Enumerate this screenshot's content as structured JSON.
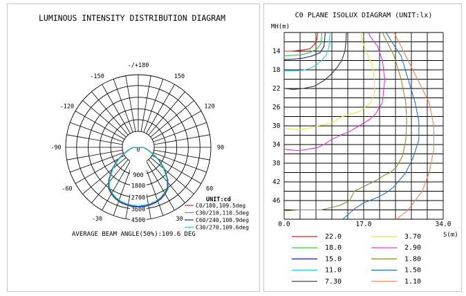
{
  "left_panel": {
    "title": "LUMINOUS INTENSITY DISTRIBUTION DIAGRAM",
    "unit_label": "UNIT:cd",
    "average_beam": "AVERAGE BEAM ANGLE(50%):109.6 DEG"
  },
  "right_panel": {
    "title": "C0 PLANE ISOLUX DIAGRAM (UNIT:lx)",
    "y_axis_label": "MH(m)",
    "x_axis_label": "S(m)"
  },
  "chart_data": [
    {
      "type": "polar",
      "title": "LUMINOUS INTENSITY DISTRIBUTION DIAGRAM",
      "unit": "UNIT:cd",
      "angle_labels": [
        {
          "angle": 180,
          "text": "-/+180"
        },
        {
          "angle": -150,
          "text": "-150"
        },
        {
          "angle": 150,
          "text": "150"
        },
        {
          "angle": -120,
          "text": "-120"
        },
        {
          "angle": 120,
          "text": "120"
        },
        {
          "angle": -90,
          "text": "-90"
        },
        {
          "angle": 90,
          "text": "90"
        },
        {
          "angle": -60,
          "text": "-60"
        },
        {
          "angle": 60,
          "text": "60"
        },
        {
          "angle": -30,
          "text": "-30"
        },
        {
          "angle": 30,
          "text": "30"
        },
        {
          "angle": 0,
          "text": "0"
        }
      ],
      "radial_ticks": [
        900,
        1800,
        2700,
        3600,
        4500
      ],
      "radial_tick_labels": [
        "900",
        "1800",
        "2700",
        "3600",
        "4500"
      ],
      "r_max": 4500,
      "series": [
        {
          "name": "C0/180,109.5deg",
          "color": "#d42020",
          "points": [
            [
              -88,
              350
            ],
            [
              -80,
              480
            ],
            [
              -72,
              700
            ],
            [
              -65,
              1050
            ],
            [
              -58,
              1550
            ],
            [
              -50,
              2150
            ],
            [
              -42,
              2750
            ],
            [
              -36,
              3150
            ],
            [
              -30,
              3350
            ],
            [
              -24,
              3500
            ],
            [
              -18,
              3600
            ],
            [
              -12,
              3650
            ],
            [
              -6,
              3700
            ],
            [
              0,
              3700
            ],
            [
              6,
              3700
            ],
            [
              12,
              3650
            ],
            [
              18,
              3600
            ],
            [
              24,
              3500
            ],
            [
              30,
              3350
            ],
            [
              36,
              3150
            ],
            [
              42,
              2750
            ],
            [
              50,
              2150
            ],
            [
              58,
              1550
            ],
            [
              65,
              1050
            ],
            [
              72,
              700
            ],
            [
              80,
              480
            ],
            [
              88,
              350
            ]
          ]
        },
        {
          "name": "C30/210,110.5deg",
          "color": "#2ebd2e",
          "points": [
            [
              -88,
              350
            ],
            [
              -80,
              470
            ],
            [
              -72,
              690
            ],
            [
              -65,
              1040
            ],
            [
              -58,
              1540
            ],
            [
              -50,
              2130
            ],
            [
              -42,
              2730
            ],
            [
              -36,
              3130
            ],
            [
              -30,
              3330
            ],
            [
              -24,
              3480
            ],
            [
              -18,
              3580
            ],
            [
              -12,
              3630
            ],
            [
              -6,
              3680
            ],
            [
              0,
              3690
            ],
            [
              6,
              3680
            ],
            [
              12,
              3630
            ],
            [
              18,
              3580
            ],
            [
              24,
              3480
            ],
            [
              30,
              3330
            ],
            [
              36,
              3130
            ],
            [
              42,
              2730
            ],
            [
              50,
              2130
            ],
            [
              58,
              1540
            ],
            [
              65,
              1040
            ],
            [
              72,
              690
            ],
            [
              80,
              470
            ],
            [
              88,
              350
            ]
          ]
        },
        {
          "name": "C60/240,108.9deg",
          "color": "#1d1db8",
          "points": [
            [
              -88,
              340
            ],
            [
              -80,
              460
            ],
            [
              -72,
              680
            ],
            [
              -65,
              1020
            ],
            [
              -58,
              1520
            ],
            [
              -50,
              2100
            ],
            [
              -42,
              2700
            ],
            [
              -36,
              3100
            ],
            [
              -30,
              3300
            ],
            [
              -24,
              3450
            ],
            [
              -18,
              3560
            ],
            [
              -12,
              3620
            ],
            [
              -6,
              3660
            ],
            [
              0,
              3680
            ],
            [
              6,
              3660
            ],
            [
              12,
              3620
            ],
            [
              18,
              3560
            ],
            [
              24,
              3450
            ],
            [
              30,
              3300
            ],
            [
              36,
              3100
            ],
            [
              42,
              2700
            ],
            [
              50,
              2100
            ],
            [
              58,
              1520
            ],
            [
              65,
              1020
            ],
            [
              72,
              680
            ],
            [
              80,
              460
            ],
            [
              88,
              340
            ]
          ]
        },
        {
          "name": "C30/270,109.6deg",
          "color": "#27d0d8",
          "points": [
            [
              -88,
              300
            ],
            [
              -80,
              420
            ],
            [
              -72,
              640
            ],
            [
              -65,
              980
            ],
            [
              -58,
              1460
            ],
            [
              -50,
              2040
            ],
            [
              -42,
              2650
            ],
            [
              -36,
              3050
            ],
            [
              -30,
              3250
            ],
            [
              -24,
              3400
            ],
            [
              -18,
              3500
            ],
            [
              -12,
              3560
            ],
            [
              -6,
              3600
            ],
            [
              0,
              3610
            ],
            [
              6,
              3600
            ],
            [
              12,
              3560
            ],
            [
              18,
              3500
            ],
            [
              24,
              3400
            ],
            [
              30,
              3250
            ],
            [
              36,
              3050
            ],
            [
              42,
              2650
            ],
            [
              50,
              2040
            ],
            [
              58,
              1460
            ],
            [
              65,
              980
            ],
            [
              72,
              640
            ],
            [
              80,
              420
            ],
            [
              88,
              300
            ]
          ]
        }
      ],
      "note": "AVERAGE BEAM ANGLE(50%):109.6 DEG"
    },
    {
      "type": "line",
      "title": "C0 PLANE ISOLUX DIAGRAM (UNIT:lx)",
      "xlabel": "S(m)",
      "ylabel": "MH(m)",
      "xlim": [
        0,
        34
      ],
      "ylim": [
        10,
        50
      ],
      "y_inverted": true,
      "x_tick_labels": [
        "0.0",
        "17.0",
        "34.0"
      ],
      "x_tick_values": [
        0,
        17,
        34
      ],
      "y_tick_values": [
        14,
        18,
        22,
        26,
        30,
        34,
        38,
        42,
        46
      ],
      "y_tick_labels": [
        "14",
        "18",
        "22",
        "26",
        "30",
        "34",
        "38",
        "42",
        "46"
      ],
      "grid": true,
      "series": [
        {
          "name": "22.0",
          "color": "#e02020",
          "points": [
            [
              0,
              14
            ],
            [
              1.5,
              14
            ],
            [
              3.5,
              13.8
            ],
            [
              5.5,
              13.5
            ],
            [
              6.5,
              12.5
            ],
            [
              7,
              11.5
            ],
            [
              7.2,
              10
            ]
          ]
        },
        {
          "name": "18.0",
          "color": "#2ec72e",
          "points": [
            [
              0,
              15
            ],
            [
              1.5,
              14.9
            ],
            [
              3.5,
              14.8
            ],
            [
              5.5,
              14.3
            ],
            [
              7,
              13.5
            ],
            [
              7.8,
              12.5
            ],
            [
              8.1,
              10
            ]
          ]
        },
        {
          "name": "15.0",
          "color": "#1d1db8",
          "points": [
            [
              0,
              15.8
            ],
            [
              2,
              15.7
            ],
            [
              4,
              15.5
            ],
            [
              6,
              15
            ],
            [
              7.7,
              14.3
            ],
            [
              8.5,
              13
            ],
            [
              8.8,
              10
            ]
          ]
        },
        {
          "name": "11.0",
          "color": "#27d0d8",
          "points": [
            [
              0,
              18.2
            ],
            [
              2,
              18.2
            ],
            [
              4,
              18.1
            ],
            [
              5.5,
              17.7
            ],
            [
              6.8,
              17
            ],
            [
              8,
              16
            ],
            [
              9,
              14.8
            ],
            [
              9.6,
              13
            ],
            [
              9.8,
              10
            ]
          ]
        },
        {
          "name": "7.30",
          "color": "#333333",
          "points": [
            [
              0,
              22
            ],
            [
              2,
              22.2
            ],
            [
              4,
              22
            ],
            [
              6.5,
              21.5
            ],
            [
              8.5,
              20.3
            ],
            [
              10,
              19
            ],
            [
              11.3,
              17.5
            ],
            [
              12.3,
              16
            ],
            [
              13,
              14
            ],
            [
              13.2,
              12
            ],
            [
              13.3,
              10
            ]
          ]
        },
        {
          "name": "3.70",
          "color": "#e8e83c",
          "points": [
            [
              0,
              30.5
            ],
            [
              3,
              30.8
            ],
            [
              5,
              30.6
            ],
            [
              7,
              30
            ],
            [
              10,
              29.5
            ],
            [
              12,
              28.2
            ],
            [
              14,
              27.5
            ],
            [
              16,
              27
            ],
            [
              18.5,
              25
            ],
            [
              19.3,
              23
            ],
            [
              19.3,
              20
            ],
            [
              18.8,
              17
            ],
            [
              17.5,
              14
            ],
            [
              16.8,
              12
            ],
            [
              16.3,
              10
            ]
          ]
        },
        {
          "name": "2.90",
          "color": "#e030e0",
          "points": [
            [
              0,
              35
            ],
            [
              3,
              35.3
            ],
            [
              5,
              35
            ],
            [
              7,
              34.7
            ],
            [
              8.5,
              34
            ],
            [
              10,
              33
            ],
            [
              12,
              32
            ],
            [
              14,
              31.2
            ],
            [
              16,
              30
            ],
            [
              18,
              28.8
            ],
            [
              19.5,
              27.5
            ],
            [
              21,
              25
            ],
            [
              21.5,
              20
            ],
            [
              21,
              16
            ],
            [
              20,
              13
            ],
            [
              18.5,
              11
            ],
            [
              18,
              10
            ]
          ]
        },
        {
          "name": "1.80",
          "color": "#8a8a2a",
          "points": [
            [
              0,
              48.2
            ],
            [
              3,
              48
            ],
            [
              5,
              48
            ],
            [
              8,
              48
            ],
            [
              10,
              47.5
            ],
            [
              12,
              47
            ],
            [
              14,
              46
            ],
            [
              15,
              44
            ],
            [
              18,
              42.5
            ],
            [
              20,
              41.5
            ],
            [
              21.5,
              40.5
            ],
            [
              22.7,
              40
            ],
            [
              24,
              38.8
            ],
            [
              25.3,
              36.5
            ],
            [
              26,
              33
            ],
            [
              26.2,
              29
            ],
            [
              26,
              25
            ],
            [
              25,
              20
            ],
            [
              23.5,
              15
            ],
            [
              22,
              12
            ],
            [
              21,
              10
            ]
          ]
        },
        {
          "name": "1.50",
          "color": "#1a6fd0",
          "points": [
            [
              5,
              52
            ],
            [
              9,
              51.5
            ],
            [
              11,
              51
            ],
            [
              12.5,
              50
            ],
            [
              15,
              47.8
            ],
            [
              17,
              46.5
            ],
            [
              20,
              45.3
            ],
            [
              22,
              44.2
            ],
            [
              23.5,
              43
            ],
            [
              26,
              40
            ],
            [
              27.5,
              37
            ],
            [
              28.8,
              33
            ],
            [
              28.8,
              29
            ],
            [
              28,
              25
            ],
            [
              26.5,
              20
            ],
            [
              25,
              15
            ],
            [
              23,
              12
            ],
            [
              21.8,
              10
            ]
          ]
        },
        {
          "name": "1.10",
          "color": "#f08050",
          "points": [
            [
              20,
              52
            ],
            [
              24,
              50
            ],
            [
              26.5,
              48
            ],
            [
              28,
              46
            ],
            [
              29.5,
              44
            ],
            [
              31,
              40
            ],
            [
              32,
              35
            ],
            [
              32,
              30
            ],
            [
              31,
              25
            ],
            [
              29,
              21
            ],
            [
              27,
              17
            ],
            [
              25,
              13
            ],
            [
              23.5,
              10
            ]
          ]
        }
      ]
    }
  ]
}
